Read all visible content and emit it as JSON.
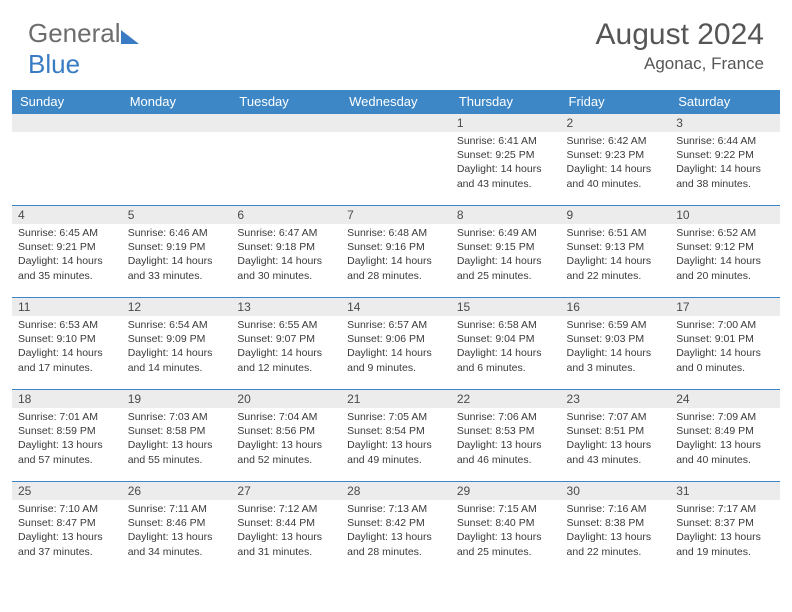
{
  "brand": {
    "part1": "General",
    "part2": "Blue"
  },
  "title": "August 2024",
  "location": "Agonac, France",
  "colors": {
    "header_bg": "#3d87c7",
    "header_text": "#ffffff",
    "daynum_bg": "#ececec",
    "border": "#3d87c7",
    "body_text": "#3a3a3a",
    "title_text": "#565656"
  },
  "day_names": [
    "Sunday",
    "Monday",
    "Tuesday",
    "Wednesday",
    "Thursday",
    "Friday",
    "Saturday"
  ],
  "weeks": [
    [
      null,
      null,
      null,
      null,
      {
        "n": "1",
        "sunrise": "6:41 AM",
        "sunset": "9:25 PM",
        "dl": "14 hours and 43 minutes."
      },
      {
        "n": "2",
        "sunrise": "6:42 AM",
        "sunset": "9:23 PM",
        "dl": "14 hours and 40 minutes."
      },
      {
        "n": "3",
        "sunrise": "6:44 AM",
        "sunset": "9:22 PM",
        "dl": "14 hours and 38 minutes."
      }
    ],
    [
      {
        "n": "4",
        "sunrise": "6:45 AM",
        "sunset": "9:21 PM",
        "dl": "14 hours and 35 minutes."
      },
      {
        "n": "5",
        "sunrise": "6:46 AM",
        "sunset": "9:19 PM",
        "dl": "14 hours and 33 minutes."
      },
      {
        "n": "6",
        "sunrise": "6:47 AM",
        "sunset": "9:18 PM",
        "dl": "14 hours and 30 minutes."
      },
      {
        "n": "7",
        "sunrise": "6:48 AM",
        "sunset": "9:16 PM",
        "dl": "14 hours and 28 minutes."
      },
      {
        "n": "8",
        "sunrise": "6:49 AM",
        "sunset": "9:15 PM",
        "dl": "14 hours and 25 minutes."
      },
      {
        "n": "9",
        "sunrise": "6:51 AM",
        "sunset": "9:13 PM",
        "dl": "14 hours and 22 minutes."
      },
      {
        "n": "10",
        "sunrise": "6:52 AM",
        "sunset": "9:12 PM",
        "dl": "14 hours and 20 minutes."
      }
    ],
    [
      {
        "n": "11",
        "sunrise": "6:53 AM",
        "sunset": "9:10 PM",
        "dl": "14 hours and 17 minutes."
      },
      {
        "n": "12",
        "sunrise": "6:54 AM",
        "sunset": "9:09 PM",
        "dl": "14 hours and 14 minutes."
      },
      {
        "n": "13",
        "sunrise": "6:55 AM",
        "sunset": "9:07 PM",
        "dl": "14 hours and 12 minutes."
      },
      {
        "n": "14",
        "sunrise": "6:57 AM",
        "sunset": "9:06 PM",
        "dl": "14 hours and 9 minutes."
      },
      {
        "n": "15",
        "sunrise": "6:58 AM",
        "sunset": "9:04 PM",
        "dl": "14 hours and 6 minutes."
      },
      {
        "n": "16",
        "sunrise": "6:59 AM",
        "sunset": "9:03 PM",
        "dl": "14 hours and 3 minutes."
      },
      {
        "n": "17",
        "sunrise": "7:00 AM",
        "sunset": "9:01 PM",
        "dl": "14 hours and 0 minutes."
      }
    ],
    [
      {
        "n": "18",
        "sunrise": "7:01 AM",
        "sunset": "8:59 PM",
        "dl": "13 hours and 57 minutes."
      },
      {
        "n": "19",
        "sunrise": "7:03 AM",
        "sunset": "8:58 PM",
        "dl": "13 hours and 55 minutes."
      },
      {
        "n": "20",
        "sunrise": "7:04 AM",
        "sunset": "8:56 PM",
        "dl": "13 hours and 52 minutes."
      },
      {
        "n": "21",
        "sunrise": "7:05 AM",
        "sunset": "8:54 PM",
        "dl": "13 hours and 49 minutes."
      },
      {
        "n": "22",
        "sunrise": "7:06 AM",
        "sunset": "8:53 PM",
        "dl": "13 hours and 46 minutes."
      },
      {
        "n": "23",
        "sunrise": "7:07 AM",
        "sunset": "8:51 PM",
        "dl": "13 hours and 43 minutes."
      },
      {
        "n": "24",
        "sunrise": "7:09 AM",
        "sunset": "8:49 PM",
        "dl": "13 hours and 40 minutes."
      }
    ],
    [
      {
        "n": "25",
        "sunrise": "7:10 AM",
        "sunset": "8:47 PM",
        "dl": "13 hours and 37 minutes."
      },
      {
        "n": "26",
        "sunrise": "7:11 AM",
        "sunset": "8:46 PM",
        "dl": "13 hours and 34 minutes."
      },
      {
        "n": "27",
        "sunrise": "7:12 AM",
        "sunset": "8:44 PM",
        "dl": "13 hours and 31 minutes."
      },
      {
        "n": "28",
        "sunrise": "7:13 AM",
        "sunset": "8:42 PM",
        "dl": "13 hours and 28 minutes."
      },
      {
        "n": "29",
        "sunrise": "7:15 AM",
        "sunset": "8:40 PM",
        "dl": "13 hours and 25 minutes."
      },
      {
        "n": "30",
        "sunrise": "7:16 AM",
        "sunset": "8:38 PM",
        "dl": "13 hours and 22 minutes."
      },
      {
        "n": "31",
        "sunrise": "7:17 AM",
        "sunset": "8:37 PM",
        "dl": "13 hours and 19 minutes."
      }
    ]
  ],
  "labels": {
    "sunrise": "Sunrise:",
    "sunset": "Sunset:",
    "daylight": "Daylight:"
  }
}
